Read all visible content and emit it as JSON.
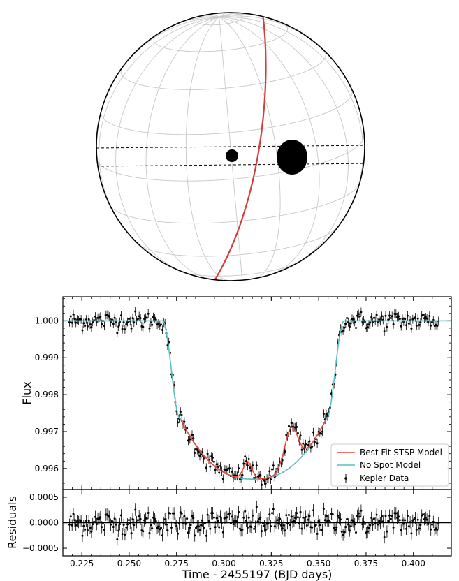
{
  "colors": {
    "star_outline": "#000000",
    "grid": "#c8c8c8",
    "planet_path": "#d0403a",
    "spot": "#000000",
    "stsp_model": "#e8473a",
    "nospot_model": "#5bbfbf",
    "data": "#000000"
  },
  "chart_data": [
    {
      "type": "diagram",
      "star": {
        "meridian_count": 9,
        "latitude_count": 9,
        "spots": [
          {
            "label": "small spot",
            "relative_size": 0.15
          },
          {
            "label": "large spot",
            "relative_size": 0.4
          }
        ],
        "transit_chord": "dashed band across stellar disk",
        "planet_path": "red great-circle arc"
      }
    },
    {
      "type": "scatter",
      "panel": "light curve",
      "xlabel": "",
      "ylabel": "Flux",
      "xlim": [
        0.215,
        0.42
      ],
      "ylim": [
        0.99543,
        1.00065
      ],
      "yticks": [
        "0.996",
        "0.997",
        "0.998",
        "0.999",
        "1.000"
      ],
      "ytick_values": [
        0.996,
        0.997,
        0.998,
        0.999,
        1.0
      ],
      "xticks": [
        0.225,
        0.25,
        0.275,
        0.3,
        0.325,
        0.35,
        0.375,
        0.4
      ],
      "legend": {
        "placement": "lower-right",
        "entries": [
          "Best Fit STSP Model",
          "No Spot Model",
          "Kepler Data"
        ]
      },
      "transit": {
        "t_center": 0.3155,
        "ingress_start": 0.2675,
        "ingress_end": 0.277,
        "egress_start": 0.354,
        "egress_end": 0.3635,
        "baseline_flux": 1.0,
        "min_flux": 0.99571
      },
      "spot_bumps": [
        {
          "t": 0.3125,
          "amplitude": 0.00046,
          "width": 0.0023
        },
        {
          "t": 0.3355,
          "amplitude": 0.00106,
          "width": 0.0035
        }
      ],
      "data_range": [
        0.2185,
        0.4135
      ]
    },
    {
      "type": "scatter",
      "panel": "residuals",
      "xlabel": "Time - 2455197 (BJD days)",
      "ylabel": "Residuals",
      "xlim": [
        0.215,
        0.42
      ],
      "ylim": [
        -0.00065,
        0.00065
      ],
      "yticks": [
        "0.0005",
        "0.0000",
        "−0.0005"
      ],
      "ytick_values": [
        0.0005,
        0.0,
        -0.0005
      ],
      "xticks": [
        "0.225",
        "0.250",
        "0.275",
        "0.300",
        "0.325",
        "0.350",
        "0.375",
        "0.400"
      ],
      "xtick_values": [
        0.225,
        0.25,
        0.275,
        0.3,
        0.325,
        0.35,
        0.375,
        0.4
      ],
      "zero_line": 0.0
    }
  ]
}
